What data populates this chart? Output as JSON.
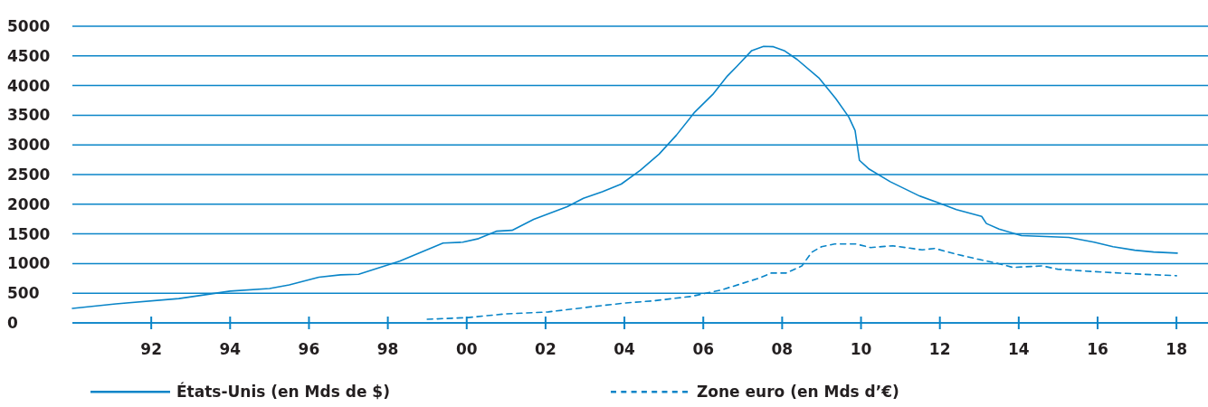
{
  "chart_data": {
    "type": "line",
    "xlim": [
      1990,
      2018.8
    ],
    "ylim": [
      0,
      5000
    ],
    "xticks": [
      {
        "value": 1992,
        "label": "92"
      },
      {
        "value": 1994,
        "label": "94"
      },
      {
        "value": 1996,
        "label": "96"
      },
      {
        "value": 1998,
        "label": "98"
      },
      {
        "value": 2000,
        "label": "00"
      },
      {
        "value": 2002,
        "label": "02"
      },
      {
        "value": 2004,
        "label": "04"
      },
      {
        "value": 2006,
        "label": "06"
      },
      {
        "value": 2008,
        "label": "08"
      },
      {
        "value": 2010,
        "label": "10"
      },
      {
        "value": 2012,
        "label": "12"
      },
      {
        "value": 2014,
        "label": "14"
      },
      {
        "value": 2016,
        "label": "16"
      },
      {
        "value": 2018,
        "label": "18"
      }
    ],
    "yticks": [
      0,
      500,
      1000,
      1500,
      2000,
      2500,
      3000,
      3500,
      4000,
      4500,
      5000
    ],
    "grid": "y",
    "legend": "bottom",
    "marker": "none",
    "series": [
      {
        "name": "États-Unis (en Mds de $)",
        "color": "#0a85c8",
        "line_style": "solid",
        "x": [
          1990,
          1991.1,
          1992.7,
          1994.0,
          1995.0,
          1995.5,
          1996.25,
          1996.8,
          1997.26,
          1998.3,
          1999.4,
          1999.9,
          2000.3,
          2000.75,
          2001.15,
          2001.7,
          2002.55,
          2002.96,
          2003.44,
          2003.92,
          2004.4,
          2004.88,
          2005.32,
          2005.78,
          2006.24,
          2006.61,
          2006.86,
          2007.23,
          2007.53,
          2007.78,
          2008.05,
          2008.38,
          2008.93,
          2009.36,
          2009.69,
          2009.85,
          2009.96,
          2010.19,
          2010.74,
          2011.48,
          2011.98,
          2012.42,
          2013.06,
          2013.18,
          2013.5,
          2014.07,
          2015.27,
          2015.91,
          2016.39,
          2016.94,
          2017.42,
          2018.02
        ],
        "values": [
          245,
          320,
          410,
          535,
          580,
          640,
          770,
          810,
          820,
          1040,
          1345,
          1360,
          1420,
          1545,
          1560,
          1745,
          1960,
          2100,
          2210,
          2340,
          2570,
          2845,
          3165,
          3550,
          3850,
          4160,
          4330,
          4590,
          4660,
          4655,
          4590,
          4440,
          4130,
          3780,
          3470,
          3240,
          2740,
          2600,
          2380,
          2140,
          2020,
          1910,
          1795,
          1675,
          1580,
          1470,
          1440,
          1360,
          1285,
          1225,
          1195,
          1175
        ]
      },
      {
        "name": "Zone euro (en Mds d’€)",
        "color": "#0a85c8",
        "line_style": "dashed",
        "x": [
          1999.0,
          2000.03,
          2000.95,
          2002.07,
          2003.2,
          2004.02,
          2004.71,
          2005.68,
          2006.43,
          2007.4,
          2007.72,
          2008.1,
          2008.5,
          2008.75,
          2009.0,
          2009.33,
          2009.87,
          2010.24,
          2010.8,
          2011.55,
          2011.87,
          2012.4,
          2012.99,
          2013.48,
          2013.85,
          2014.6,
          2014.99,
          2015.89,
          2016.97,
          2018.0
        ],
        "values": [
          60,
          90,
          150,
          185,
          275,
          335,
          370,
          445,
          550,
          750,
          840,
          840,
          960,
          1190,
          1285,
          1330,
          1330,
          1270,
          1300,
          1230,
          1255,
          1160,
          1070,
          1000,
          935,
          960,
          905,
          865,
          825,
          795
        ]
      }
    ]
  }
}
